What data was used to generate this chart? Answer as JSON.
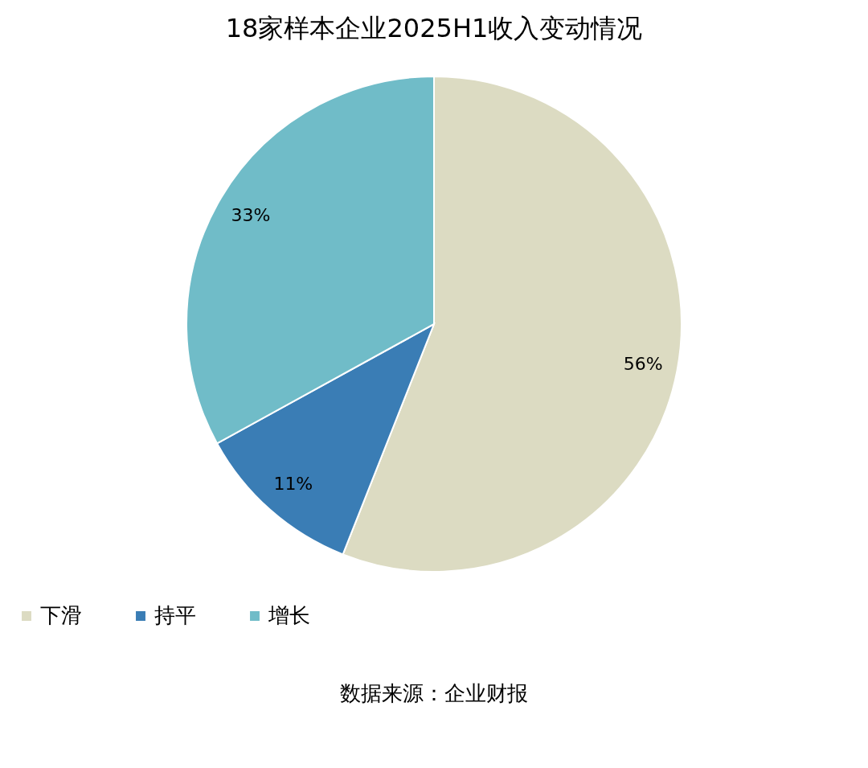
{
  "chart_data": {
    "type": "pie",
    "title": "18家样本企业2025H1收入变动情况",
    "categories": [
      "下滑",
      "持平",
      "增长"
    ],
    "values": [
      56,
      11,
      33
    ],
    "colors": [
      "#dcdbc2",
      "#3a7db5",
      "#70bcc8"
    ],
    "value_labels": [
      "56%",
      "11%",
      "33%"
    ],
    "legend": "bottom",
    "annotations": [
      "数据来源：企业财报"
    ]
  }
}
